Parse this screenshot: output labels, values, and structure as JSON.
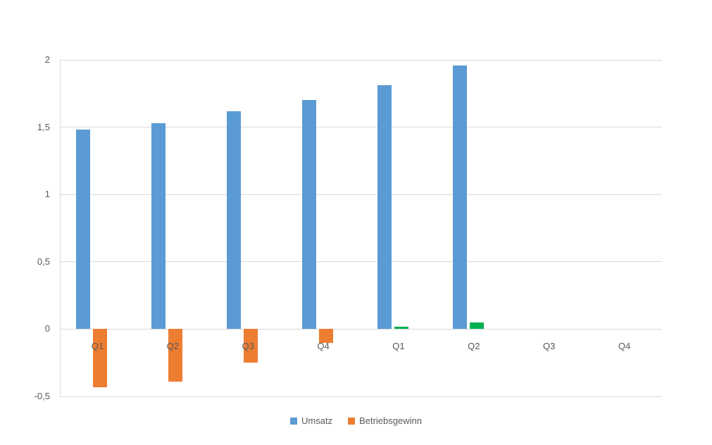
{
  "chart_data": {
    "type": "bar",
    "title": "",
    "categories": [
      "Q1",
      "Q2",
      "Q3",
      "Q4",
      "Q1",
      "Q2",
      "Q3",
      "Q4"
    ],
    "series": [
      {
        "name": "Umsatz",
        "color": "#5B9BD5",
        "values": [
          1.48,
          1.53,
          1.62,
          1.7,
          1.81,
          1.96,
          null,
          null
        ]
      },
      {
        "name": "Betriebsgewinn",
        "color": "#ED7D31",
        "color_negative": "#ED7D31",
        "color_positive": "#00B050",
        "values": [
          -0.43,
          -0.39,
          -0.25,
          -0.1,
          0.02,
          0.05,
          null,
          null
        ]
      }
    ],
    "xlabel": "",
    "ylabel": "",
    "ylim": [
      -0.5,
      2
    ],
    "yticks": [
      -0.5,
      0,
      0.5,
      1,
      1.5,
      2
    ],
    "ytick_labels": [
      "-0,5",
      "0",
      "0,5",
      "1",
      "1,5",
      "2"
    ],
    "grid": true,
    "legend_position": "bottom"
  },
  "legend": {
    "items": [
      {
        "label": "Umsatz",
        "color": "#5B9BD5"
      },
      {
        "label": "Betriebsgewinn",
        "color": "#ED7D31"
      }
    ]
  },
  "style": {
    "background": "#FFFFFF",
    "gridline_color": "#D9D9D9",
    "axis_line_color": "#D9D9D9",
    "text_color": "#595959"
  }
}
